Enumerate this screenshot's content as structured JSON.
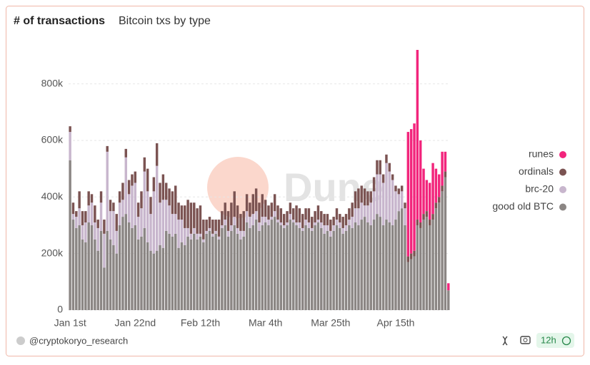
{
  "header": {
    "title": "# of transactions",
    "subtitle": "Bitcoin txs by type"
  },
  "footer": {
    "author": "@cryptokoryo_research",
    "refresh": "12h"
  },
  "chart_data": {
    "type": "stacked_bar",
    "watermark": "Dune",
    "categories": [
      "Jan 1st",
      null,
      null,
      null,
      null,
      null,
      null,
      null,
      null,
      null,
      null,
      null,
      null,
      null,
      null,
      null,
      null,
      null,
      null,
      null,
      null,
      "Jan 22nd",
      null,
      null,
      null,
      null,
      null,
      null,
      null,
      null,
      null,
      null,
      null,
      null,
      null,
      null,
      null,
      null,
      null,
      null,
      null,
      null,
      "Feb 12th",
      null,
      null,
      null,
      null,
      null,
      null,
      null,
      null,
      null,
      null,
      null,
      null,
      null,
      null,
      null,
      null,
      null,
      null,
      null,
      null,
      "Mar 4th",
      null,
      null,
      null,
      null,
      null,
      null,
      null,
      null,
      null,
      null,
      null,
      null,
      null,
      null,
      null,
      null,
      null,
      null,
      null,
      null,
      "Mar 25th",
      null,
      null,
      null,
      null,
      null,
      null,
      null,
      null,
      null,
      null,
      null,
      null,
      null,
      null,
      null,
      null,
      null,
      null,
      null,
      null,
      "Apr 15th",
      null,
      null,
      null,
      null,
      null,
      null,
      null,
      null,
      null,
      null,
      null,
      null,
      null,
      null,
      null,
      null,
      null
    ],
    "ylim": [
      0,
      920000
    ],
    "yticks": [
      0,
      {
        "value": 200000,
        "label": "200k"
      },
      {
        "value": 400000,
        "label": "400k"
      },
      {
        "value": 600000,
        "label": "600k"
      },
      {
        "value": 800000,
        "label": "800k"
      }
    ],
    "grid": true,
    "legend": "right",
    "series": [
      {
        "name": "good old BTC",
        "color": "#8b8684",
        "values": [
          530000,
          320000,
          290000,
          300000,
          250000,
          240000,
          310000,
          300000,
          250000,
          210000,
          280000,
          150000,
          280000,
          250000,
          230000,
          200000,
          300000,
          330000,
          340000,
          310000,
          290000,
          300000,
          250000,
          260000,
          290000,
          240000,
          210000,
          200000,
          210000,
          230000,
          220000,
          280000,
          270000,
          260000,
          270000,
          220000,
          240000,
          230000,
          260000,
          250000,
          270000,
          250000,
          260000,
          240000,
          270000,
          280000,
          260000,
          270000,
          250000,
          290000,
          300000,
          260000,
          280000,
          300000,
          270000,
          250000,
          260000,
          310000,
          290000,
          300000,
          320000,
          280000,
          300000,
          310000,
          300000,
          320000,
          330000,
          310000,
          300000,
          290000,
          300000,
          320000,
          310000,
          300000,
          290000,
          280000,
          300000,
          290000,
          280000,
          300000,
          310000,
          290000,
          270000,
          280000,
          260000,
          280000,
          300000,
          290000,
          270000,
          280000,
          300000,
          290000,
          310000,
          300000,
          320000,
          330000,
          310000,
          300000,
          320000,
          340000,
          330000,
          300000,
          320000,
          310000,
          300000,
          320000,
          350000,
          360000,
          300000,
          170000,
          180000,
          190000,
          300000,
          290000,
          320000,
          330000,
          300000,
          320000,
          360000,
          380000,
          420000,
          470000,
          70000
        ]
      },
      {
        "name": "brc-20",
        "color": "#c8b6cd",
        "values": [
          100000,
          20000,
          40000,
          60000,
          50000,
          70000,
          60000,
          80000,
          60000,
          80000,
          100000,
          120000,
          280000,
          100000,
          120000,
          80000,
          80000,
          60000,
          200000,
          100000,
          150000,
          150000,
          80000,
          100000,
          200000,
          180000,
          130000,
          220000,
          300000,
          150000,
          170000,
          110000,
          100000,
          80000,
          70000,
          100000,
          80000,
          60000,
          30000,
          20000,
          20000,
          20000,
          10000,
          10000,
          10000,
          10000,
          10000,
          10000,
          10000,
          10000,
          20000,
          20000,
          20000,
          30000,
          20000,
          30000,
          20000,
          40000,
          40000,
          40000,
          30000,
          30000,
          30000,
          20000,
          20000,
          10000,
          20000,
          10000,
          10000,
          10000,
          10000,
          20000,
          10000,
          10000,
          20000,
          10000,
          20000,
          20000,
          10000,
          10000,
          10000,
          20000,
          30000,
          20000,
          20000,
          20000,
          20000,
          20000,
          20000,
          20000,
          20000,
          40000,
          50000,
          60000,
          60000,
          40000,
          60000,
          80000,
          100000,
          140000,
          150000,
          150000,
          200000,
          180000,
          160000,
          100000,
          60000,
          60000,
          60000,
          0,
          0,
          0,
          0,
          0,
          0,
          0,
          0,
          0,
          0,
          0,
          0,
          0,
          0
        ]
      },
      {
        "name": "ordinals",
        "color": "#7b5352",
        "values": [
          20000,
          40000,
          20000,
          60000,
          50000,
          40000,
          50000,
          30000,
          60000,
          30000,
          40000,
          50000,
          20000,
          40000,
          30000,
          60000,
          40000,
          60000,
          30000,
          50000,
          40000,
          40000,
          50000,
          60000,
          50000,
          80000,
          60000,
          50000,
          80000,
          70000,
          90000,
          60000,
          60000,
          80000,
          100000,
          60000,
          50000,
          80000,
          100000,
          110000,
          90000,
          90000,
          100000,
          70000,
          40000,
          40000,
          50000,
          40000,
          60000,
          50000,
          60000,
          70000,
          80000,
          90000,
          80000,
          60000,
          70000,
          60000,
          50000,
          70000,
          80000,
          70000,
          80000,
          60000,
          50000,
          50000,
          60000,
          50000,
          50000,
          40000,
          40000,
          40000,
          40000,
          60000,
          50000,
          50000,
          40000,
          50000,
          40000,
          40000,
          50000,
          40000,
          40000,
          40000,
          40000,
          30000,
          40000,
          30000,
          40000,
          40000,
          40000,
          50000,
          60000,
          70000,
          60000,
          60000,
          50000,
          40000,
          50000,
          50000,
          50000,
          30000,
          30000,
          30000,
          20000,
          20000,
          20000,
          20000,
          20000,
          20000,
          20000,
          20000,
          20000,
          20000,
          20000,
          20000,
          20000,
          20000,
          20000,
          20000,
          20000,
          20000,
          0
        ]
      },
      {
        "name": "runes",
        "color": "#f2257c",
        "values": [
          0,
          0,
          0,
          0,
          0,
          0,
          0,
          0,
          0,
          0,
          0,
          0,
          0,
          0,
          0,
          0,
          0,
          0,
          0,
          0,
          0,
          0,
          0,
          0,
          0,
          0,
          0,
          0,
          0,
          0,
          0,
          0,
          0,
          0,
          0,
          0,
          0,
          0,
          0,
          0,
          0,
          0,
          0,
          0,
          0,
          0,
          0,
          0,
          0,
          0,
          0,
          0,
          0,
          0,
          0,
          0,
          0,
          0,
          0,
          0,
          0,
          0,
          0,
          0,
          0,
          0,
          0,
          0,
          0,
          0,
          0,
          0,
          0,
          0,
          0,
          0,
          0,
          0,
          0,
          0,
          0,
          0,
          0,
          0,
          0,
          0,
          0,
          0,
          0,
          0,
          0,
          0,
          0,
          0,
          0,
          0,
          0,
          0,
          0,
          0,
          0,
          0,
          0,
          0,
          0,
          0,
          0,
          0,
          0,
          440000,
          440000,
          450000,
          600000,
          290000,
          160000,
          110000,
          130000,
          180000,
          120000,
          80000,
          120000,
          70000,
          25000
        ]
      }
    ]
  }
}
